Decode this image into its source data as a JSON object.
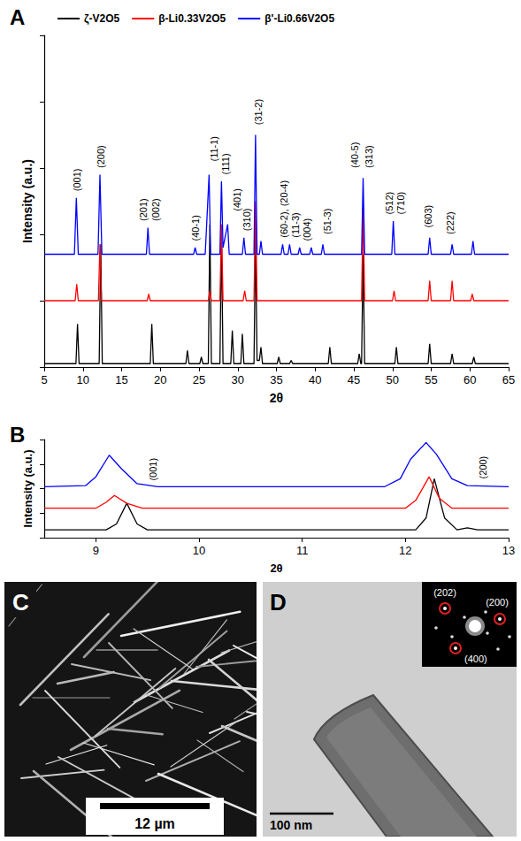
{
  "chart_data": [
    {
      "title": "A",
      "type": "line",
      "x_label": "2θ",
      "y_label": "Intensity (a.u.)",
      "xlim": [
        5,
        65
      ],
      "xticks": [
        5,
        10,
        15,
        20,
        25,
        30,
        35,
        40,
        45,
        50,
        55,
        60,
        65
      ],
      "ylim": [
        0,
        100
      ],
      "yticks": [
        0,
        20,
        40,
        60,
        80,
        100
      ],
      "tick_labels": "x",
      "grid": false,
      "legend": "top",
      "series": [
        {
          "name": "ζ-V2O5",
          "color": "#000000",
          "x": [
            5,
            9.1,
            9.3,
            9.5,
            12.1,
            12.3,
            12.5,
            18.7,
            18.9,
            19.1,
            23.3,
            23.5,
            23.7,
            25.1,
            25.3,
            25.5,
            26.2,
            26.4,
            26.6,
            27.7,
            27.9,
            28.1,
            29.1,
            29.3,
            29.5,
            30.4,
            30.6,
            30.8,
            32.1,
            32.3,
            32.5,
            32.8,
            33,
            33.2,
            35.1,
            35.3,
            35.5,
            36.7,
            36.9,
            37.1,
            41.7,
            41.9,
            42.1,
            45.5,
            45.7,
            45.9,
            46,
            46.2,
            46.4,
            50.3,
            50.5,
            50.7,
            54.6,
            54.8,
            55,
            57.5,
            57.7,
            57.9,
            60.3,
            60.5,
            60.7,
            65
          ],
          "values": [
            1,
            1,
            13,
            1,
            1,
            37,
            1,
            1,
            13,
            1,
            1,
            5,
            1,
            1,
            3,
            1,
            1,
            43,
            1,
            1,
            40,
            1,
            1,
            11,
            1,
            1,
            10,
            1,
            1,
            39,
            2,
            2,
            6,
            1,
            1,
            3,
            1,
            1,
            2,
            1,
            1,
            6,
            1,
            1,
            4,
            1,
            1,
            34,
            1,
            1,
            6,
            1,
            1,
            7,
            1,
            1,
            4,
            1,
            1,
            3,
            1,
            1
          ]
        },
        {
          "name": "β-Li0.33V2O5",
          "color": "#ff0000",
          "x": [
            5,
            9,
            9.2,
            9.4,
            12,
            12.2,
            12.4,
            18.3,
            18.5,
            18.7,
            26.2,
            26.4,
            26.6,
            27.7,
            27.9,
            28.1,
            30.7,
            30.9,
            31.1,
            32.1,
            32.3,
            32.5,
            46,
            46.2,
            46.4,
            50,
            50.2,
            50.4,
            54.6,
            54.8,
            55,
            57.5,
            57.7,
            57.9,
            60.1,
            60.3,
            60.5,
            65
          ],
          "values": [
            20,
            20,
            25,
            20,
            20,
            37,
            20,
            20,
            22,
            20,
            20,
            23,
            20,
            20,
            43,
            20,
            20,
            23,
            20,
            20,
            50,
            20,
            20,
            48,
            20,
            20,
            23,
            20,
            20,
            26,
            20,
            20,
            26,
            20,
            20,
            22,
            20,
            20
          ]
        },
        {
          "name": "β'-Li0.66V2O5",
          "color": "#0000ff",
          "x": [
            5,
            8.9,
            9.15,
            9.4,
            11.95,
            12.2,
            12.45,
            18.2,
            18.4,
            18.6,
            24.3,
            24.5,
            24.7,
            25.8,
            26.3,
            26.5,
            27.7,
            27.9,
            28.1,
            28.7,
            28.9,
            30.6,
            30.8,
            31,
            32.1,
            32.3,
            32.5,
            32.8,
            33,
            33.2,
            35.6,
            35.8,
            36,
            36.5,
            36.7,
            36.9,
            37.8,
            38,
            38.2,
            39.3,
            39.5,
            39.7,
            40.8,
            41,
            41.2,
            46,
            46.2,
            46.4,
            49.9,
            50.1,
            50.3,
            54.6,
            54.8,
            55,
            57.5,
            57.7,
            57.9,
            60.2,
            60.4,
            60.6,
            65
          ],
          "values": [
            34,
            34,
            51,
            34,
            34,
            58,
            34,
            34,
            42,
            34,
            34,
            36,
            34,
            34,
            58,
            34,
            34,
            56,
            36,
            43,
            34,
            34,
            39,
            34,
            34,
            70,
            34,
            34,
            38,
            34,
            34,
            37,
            34,
            34,
            37,
            34,
            34,
            36,
            34,
            34,
            36,
            34,
            34,
            37,
            34,
            34,
            57,
            34,
            34,
            44,
            34,
            34,
            39,
            34,
            34,
            37,
            34,
            34,
            38,
            34,
            34
          ]
        }
      ],
      "annotations": [
        {
          "x": 9.2,
          "y": 53,
          "text": "(001)"
        },
        {
          "x": 12.3,
          "y": 60,
          "text": "(200)"
        },
        {
          "x": 17.8,
          "y": 44,
          "text": "(201)"
        },
        {
          "x": 19.4,
          "y": 44,
          "text": "(002)"
        },
        {
          "x": 24.5,
          "y": 38,
          "text": "(40-1)"
        },
        {
          "x": 26.9,
          "y": 62,
          "text": "(11-1)"
        },
        {
          "x": 28.4,
          "y": 58,
          "text": "(111)"
        },
        {
          "x": 29.9,
          "y": 47,
          "text": "(401)"
        },
        {
          "x": 31.2,
          "y": 41,
          "text": "(310)"
        },
        {
          "x": 32.6,
          "y": 73,
          "text": "(31-2)"
        },
        {
          "x": 36.0,
          "y": 39,
          "text": "(60-2), (20-4)"
        },
        {
          "x": 37.5,
          "y": 39,
          "text": "(11-3)"
        },
        {
          "x": 38.9,
          "y": 38,
          "text": "(004)"
        },
        {
          "x": 41.6,
          "y": 40,
          "text": "(51-3)"
        },
        {
          "x": 45.1,
          "y": 60,
          "text": "(40-5)"
        },
        {
          "x": 46.9,
          "y": 60,
          "text": "(313)"
        },
        {
          "x": 49.6,
          "y": 46,
          "text": "(512)"
        },
        {
          "x": 51.0,
          "y": 46,
          "text": "(710)"
        },
        {
          "x": 54.6,
          "y": 42,
          "text": "(603)"
        },
        {
          "x": 57.4,
          "y": 40,
          "text": "(222)"
        }
      ]
    },
    {
      "title": "B",
      "type": "line",
      "x_label": "2θ",
      "y_label": "Intensity (a.u.)",
      "xlim": [
        8.5,
        13
      ],
      "xticks": [
        9,
        10,
        11,
        12,
        13
      ],
      "ylim": [
        0,
        100
      ],
      "yticks": [
        0,
        25,
        50,
        75,
        100
      ],
      "tick_labels": "x",
      "grid": false,
      "series": [
        {
          "color": "#000000",
          "x": [
            8.5,
            9.1,
            9.2,
            9.3,
            9.4,
            9.5,
            12.1,
            12.2,
            12.28,
            12.38,
            12.5,
            12.6,
            12.7,
            13
          ],
          "values": [
            8,
            8,
            14,
            35,
            14,
            8,
            8,
            20,
            60,
            20,
            8,
            10,
            8,
            8
          ]
        },
        {
          "color": "#ff0000",
          "x": [
            8.5,
            9,
            9.1,
            9.18,
            9.3,
            9.45,
            12,
            12.1,
            12.23,
            12.33,
            12.45,
            13
          ],
          "values": [
            30,
            30,
            36,
            43,
            35,
            30,
            30,
            38,
            62,
            40,
            30,
            30
          ]
        },
        {
          "color": "#0000ff",
          "x": [
            8.5,
            8.9,
            9,
            9.13,
            9.25,
            9.4,
            9.6,
            11.8,
            11.95,
            12.05,
            12.2,
            12.3,
            12.45,
            12.6,
            13
          ],
          "values": [
            52,
            53,
            62,
            84,
            70,
            55,
            52,
            52,
            60,
            80,
            97,
            85,
            60,
            53,
            52
          ]
        }
      ],
      "annotations": [
        {
          "x": 9.55,
          "y": 58,
          "text": "(001)"
        },
        {
          "x": 12.75,
          "y": 60,
          "text": "(200)"
        }
      ]
    }
  ],
  "images": [
    {
      "title": "C",
      "scale_bar": "12 µm"
    },
    {
      "title": "D",
      "scale_bar": "100 nm",
      "inset_labels": [
        "(202)",
        "(200)",
        "(400)"
      ]
    }
  ]
}
